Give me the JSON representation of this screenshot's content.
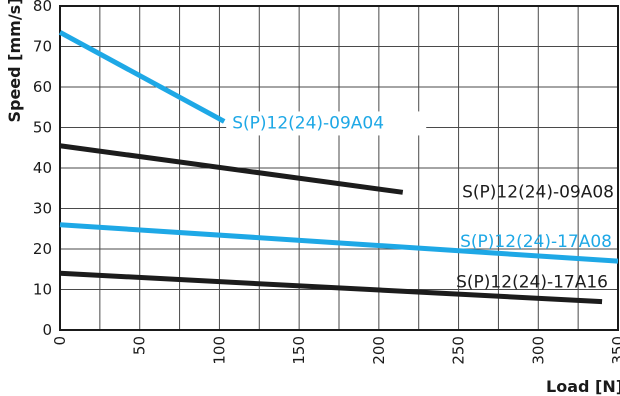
{
  "chart_data": {
    "type": "line",
    "xlabel": "Load [N]",
    "ylabel": "Speed [mm/s]",
    "xlim": [
      0,
      350
    ],
    "ylim": [
      0,
      80
    ],
    "x_ticks": [
      "0",
      "50",
      "100",
      "150",
      "200",
      "250",
      "300",
      "350"
    ],
    "y_ticks": [
      "0",
      "10",
      "20",
      "30",
      "40",
      "50",
      "60",
      "70",
      "80"
    ],
    "grid": true,
    "series": [
      {
        "name": "S(P)12(24)-09A04",
        "color": "#1ea8e6",
        "x": [
          0,
          103
        ],
        "y": [
          73.5,
          51.5
        ]
      },
      {
        "name": "S(P)12(24)-09A08",
        "color": "#1c1c1c",
        "x": [
          0,
          215
        ],
        "y": [
          45.5,
          34
        ]
      },
      {
        "name": "S(P)12(24)-17A08",
        "color": "#1ea8e6",
        "x": [
          0,
          350
        ],
        "y": [
          26,
          17
        ]
      },
      {
        "name": "S(P)12(24)-17A16",
        "color": "#1c1c1c",
        "x": [
          0,
          340
        ],
        "y": [
          14,
          7
        ]
      }
    ]
  }
}
